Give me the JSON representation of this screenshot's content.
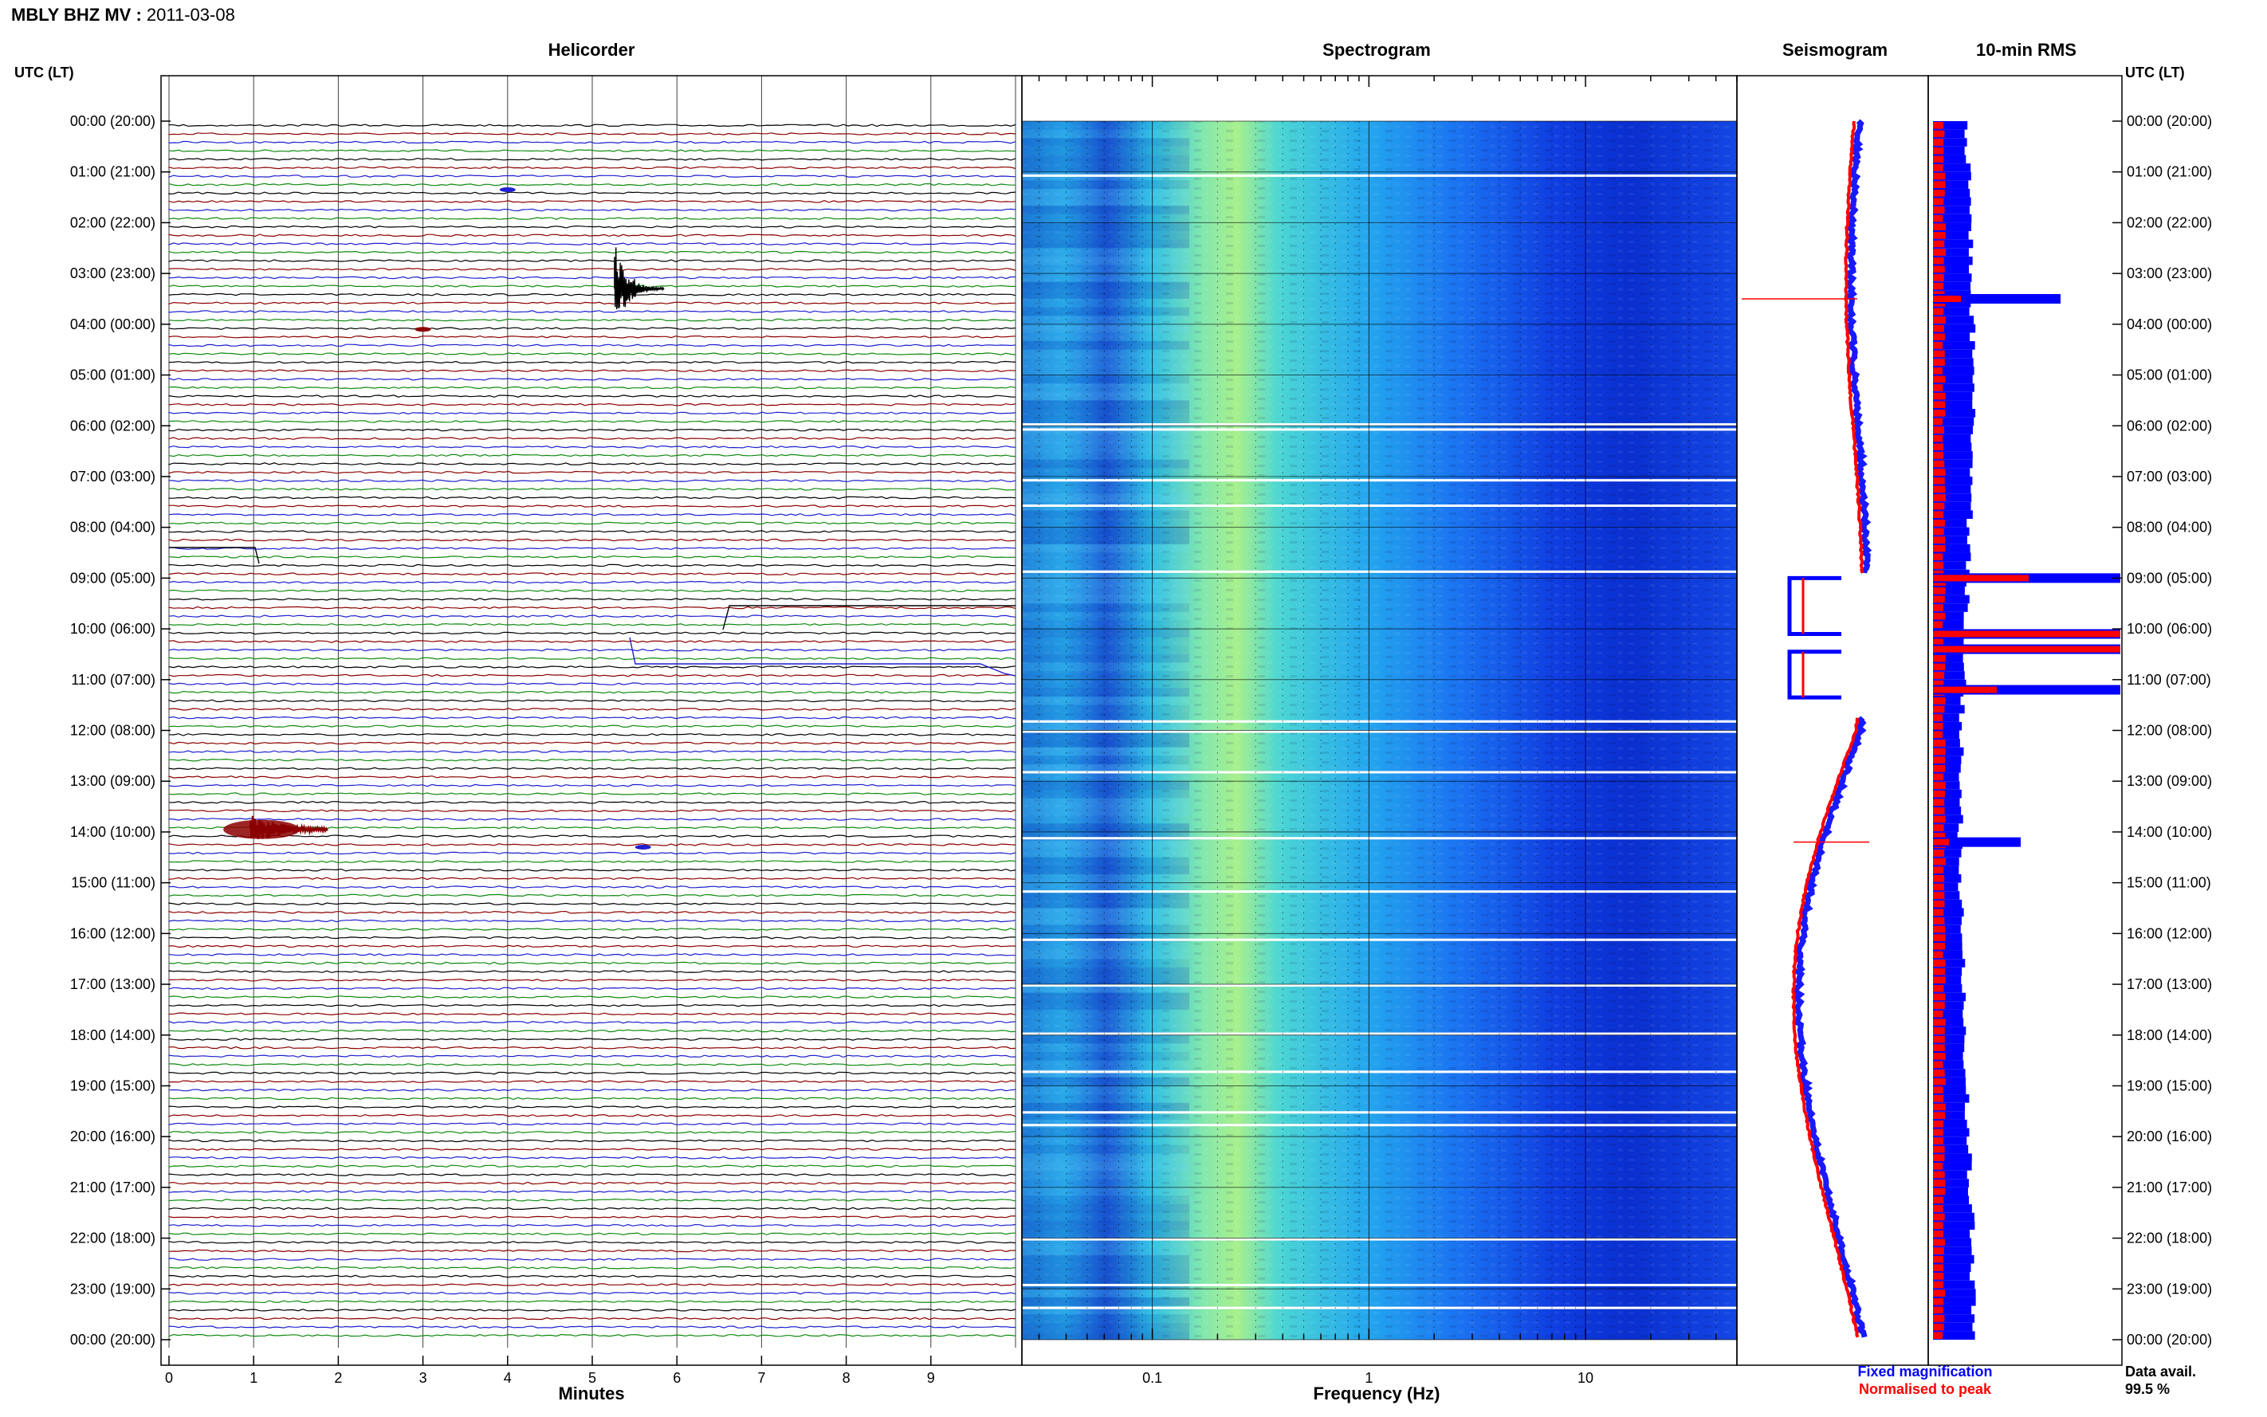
{
  "header": {
    "station": "MBLY BHZ MV",
    "date_sep": " : ",
    "date": "2011-03-08"
  },
  "axis_label_left": "UTC (LT)",
  "axis_label_right": "UTC (LT)",
  "time_labels": [
    "00:00 (20:00)",
    "01:00 (21:00)",
    "02:00 (22:00)",
    "03:00 (23:00)",
    "04:00 (00:00)",
    "05:00 (01:00)",
    "06:00 (02:00)",
    "07:00 (03:00)",
    "08:00 (04:00)",
    "09:00 (05:00)",
    "10:00 (06:00)",
    "11:00 (07:00)",
    "12:00 (08:00)",
    "13:00 (09:00)",
    "14:00 (10:00)",
    "15:00 (11:00)",
    "16:00 (12:00)",
    "17:00 (13:00)",
    "18:00 (14:00)",
    "19:00 (15:00)",
    "20:00 (16:00)",
    "21:00 (17:00)",
    "22:00 (18:00)",
    "23:00 (19:00)",
    "00:00 (20:00)"
  ],
  "panels": {
    "helicorder": {
      "title": "Helicorder",
      "xlabel": "Minutes",
      "ticks": [
        "0",
        "1",
        "2",
        "3",
        "4",
        "5",
        "6",
        "7",
        "8",
        "9"
      ],
      "trace_colors": [
        "#000000",
        "#8b0000",
        "#1f1fcf",
        "#118a11"
      ]
    },
    "spectrogram": {
      "title": "Spectrogram",
      "xlabel": "Frequency (Hz)",
      "scale": "log",
      "xlim_hz": [
        0.025,
        50
      ],
      "tick_labels": [
        "0.1",
        "1",
        "10"
      ],
      "peak_band_hz": [
        0.2,
        0.35
      ]
    },
    "seismogram": {
      "title": "Seismogram",
      "legend": [
        {
          "label": "Fixed magnification",
          "color": "#0000ff"
        },
        {
          "label": "Normalised to peak",
          "color": "#ff0000"
        }
      ]
    },
    "rms": {
      "title": "10-min RMS",
      "footer_label": "Data avail.",
      "footer_value": "99.5 %"
    }
  },
  "chart_data": {
    "type": "heatmap",
    "title": "MBLY BHZ MV : 2011-03-08",
    "y_axis": {
      "label": "UTC (LT)",
      "range_hours": [
        0,
        24
      ],
      "tick_step_hours": 1
    },
    "helicorder": {
      "x_range_minutes": [
        0,
        10
      ],
      "row_minutes": 10,
      "rows": 144,
      "events": [
        {
          "hour": 3.3,
          "minute": 5.3,
          "type": "earthquake",
          "color": "#000000"
        },
        {
          "hour": 13.95,
          "minute": 1.0,
          "type": "earthquake",
          "color": "#8b0000"
        },
        {
          "hour": 1.35,
          "minute": 4.0,
          "type": "spike",
          "color": "#1f1fcf"
        },
        {
          "hour": 4.1,
          "minute": 3.0,
          "type": "spike",
          "color": "#8b0000"
        },
        {
          "hour": 14.3,
          "minute": 5.6,
          "type": "spike",
          "color": "#1f1fcf"
        }
      ]
    },
    "rms_spikes": [
      {
        "hour": 3.5,
        "blue": 1.6,
        "red": 0.35
      },
      {
        "hour": 9.0,
        "blue": 2.4,
        "red": 1.2
      },
      {
        "hour": 10.1,
        "blue": 2.6,
        "red": 2.4
      },
      {
        "hour": 10.4,
        "blue": 2.7,
        "red": 2.7
      },
      {
        "hour": 11.2,
        "blue": 2.8,
        "red": 0.8
      },
      {
        "hour": 14.2,
        "blue": 1.1,
        "red": 0.2
      }
    ],
    "data_availability_percent": 99.5
  }
}
